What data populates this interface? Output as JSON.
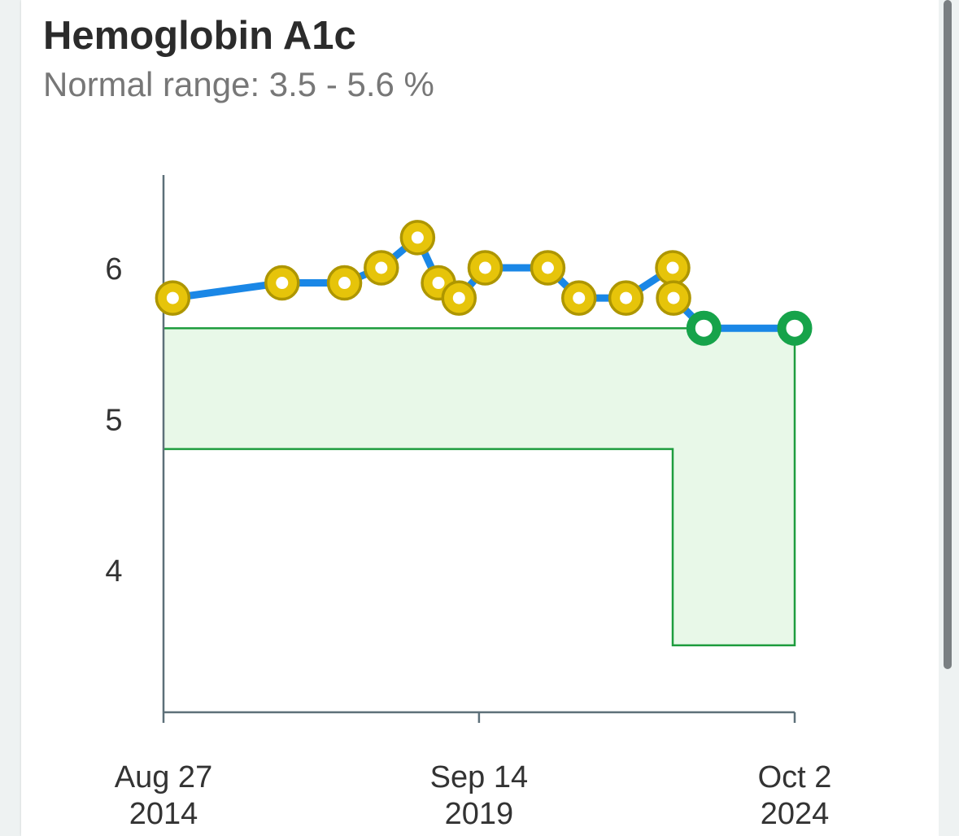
{
  "header": {
    "title": "Hemoglobin A1c",
    "subtitle": "Normal range: 3.5 - 5.6 %"
  },
  "colors": {
    "line": "#1a87e6",
    "out_of_range_fill": "#e6c40a",
    "out_of_range_stroke": "#ae9600",
    "in_range": "#16a34a",
    "range_fill": "#e8f8e8",
    "range_stroke": "#1f9d3f",
    "axis": "#5d7079"
  },
  "chart_data": {
    "type": "line",
    "title": "Hemoglobin A1c",
    "subtitle": "Normal range: 3.5 - 5.6 %",
    "x_axis_type": "date",
    "xlim": [
      "2014-08-27",
      "2024-10-02"
    ],
    "ylim": [
      3,
      6.6
    ],
    "y_ticks": [
      4,
      5,
      6
    ],
    "x_ticks": [
      {
        "date": "2014-08-27",
        "label_line1": "Aug 27",
        "label_line2": "2014"
      },
      {
        "date": "2019-09-14",
        "label_line1": "Sep 14",
        "label_line2": "2019"
      },
      {
        "date": "2024-10-02",
        "label_line1": "Oct 2",
        "label_line2": "2024"
      }
    ],
    "normal_range": {
      "segments": [
        {
          "from": "2014-08-27",
          "to": "2022-10-20",
          "low": 4.8,
          "high": 5.6
        },
        {
          "from": "2022-10-20",
          "to": "2024-10-02",
          "low": 3.5,
          "high": 5.6
        }
      ]
    },
    "series": [
      {
        "points": [
          {
            "x": "2014-10-20",
            "y": 5.8,
            "in_range": false
          },
          {
            "x": "2016-07-20",
            "y": 5.9,
            "in_range": false
          },
          {
            "x": "2017-07-20",
            "y": 5.9,
            "in_range": false
          },
          {
            "x": "2018-02-20",
            "y": 6.0,
            "in_range": false
          },
          {
            "x": "2018-09-20",
            "y": 6.2,
            "in_range": false
          },
          {
            "x": "2019-01-20",
            "y": 5.9,
            "in_range": false
          },
          {
            "x": "2019-05-20",
            "y": 5.8,
            "in_range": false
          },
          {
            "x": "2019-10-20",
            "y": 6.0,
            "in_range": false
          },
          {
            "x": "2020-10-20",
            "y": 6.0,
            "in_range": false
          },
          {
            "x": "2021-04-20",
            "y": 5.8,
            "in_range": false
          },
          {
            "x": "2022-01-20",
            "y": 5.8,
            "in_range": false
          },
          {
            "x": "2022-10-20",
            "y": 6.0,
            "in_range": false
          },
          {
            "x": "2022-10-25",
            "y": 5.8,
            "in_range": false
          },
          {
            "x": "2023-04-20",
            "y": 5.6,
            "in_range": true
          },
          {
            "x": "2024-10-02",
            "y": 5.6,
            "in_range": true
          }
        ]
      }
    ]
  }
}
